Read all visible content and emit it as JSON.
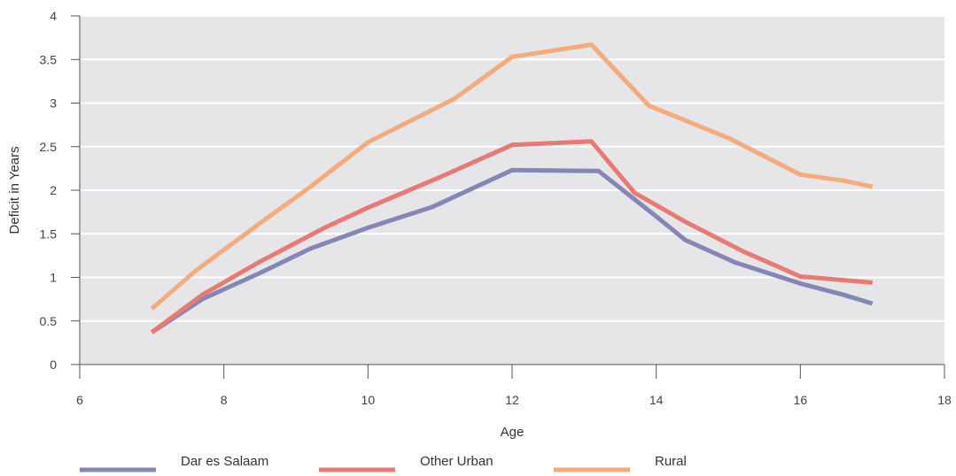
{
  "chart_data": {
    "type": "line",
    "title": "",
    "xlabel": "Age",
    "ylabel": "Deficit in Years",
    "xlim": [
      6,
      18
    ],
    "ylim": [
      0,
      4
    ],
    "grid": true,
    "legend_position": "bottom",
    "x_ticks": [
      "6",
      "8",
      "10",
      "12",
      "14",
      "16",
      "18"
    ],
    "y_ticks": [
      "0",
      "0.5",
      "1",
      "1.5",
      "2",
      "2.5",
      "3",
      "3.5",
      "4"
    ],
    "series": [
      {
        "name": "Dar es Salaam",
        "color": "#8487b5",
        "x": [
          7,
          7.7,
          8.5,
          9.2,
          10,
          10.9,
          12,
          13.2,
          14,
          14.4,
          15.1,
          16,
          16.6,
          17
        ],
        "y": [
          0.37,
          0.75,
          1.05,
          1.33,
          1.57,
          1.81,
          2.23,
          2.22,
          1.7,
          1.43,
          1.17,
          0.93,
          0.8,
          0.7
        ]
      },
      {
        "name": "Other Urban",
        "color": "#e87a73",
        "x": [
          7,
          7.7,
          8.5,
          9.4,
          10,
          11,
          12,
          13.1,
          13.7,
          14.4,
          15.2,
          16,
          17
        ],
        "y": [
          0.37,
          0.8,
          1.18,
          1.57,
          1.8,
          2.15,
          2.52,
          2.56,
          1.97,
          1.64,
          1.3,
          1.01,
          0.94
        ]
      },
      {
        "name": "Rural",
        "color": "#f6ab7d",
        "x": [
          7,
          7.6,
          8.5,
          9.2,
          10,
          11.2,
          12,
          13.1,
          13.9,
          15,
          16,
          16.6,
          17
        ],
        "y": [
          0.64,
          1.07,
          1.62,
          2.04,
          2.55,
          3.05,
          3.53,
          3.67,
          2.97,
          2.6,
          2.18,
          2.11,
          2.04
        ]
      }
    ]
  }
}
